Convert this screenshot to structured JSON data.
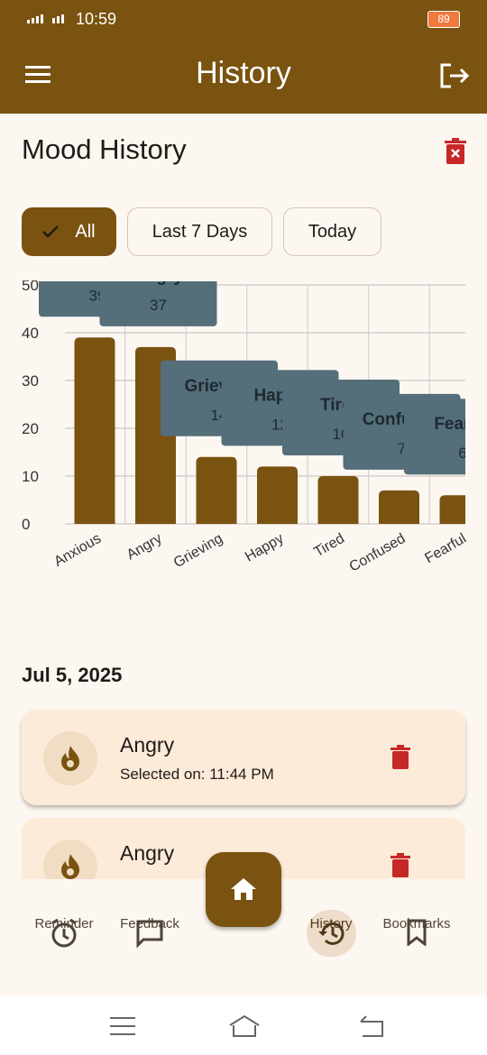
{
  "status_bar": {
    "time": "10:59",
    "battery": "89"
  },
  "app_bar": {
    "title": "History"
  },
  "header": {
    "title": "Mood History"
  },
  "filters": [
    "All",
    "Last 7 Days",
    "Today"
  ],
  "chart_data": {
    "type": "bar",
    "categories": [
      "Anxious",
      "Angry",
      "Grieving",
      "Happy",
      "Tired",
      "Confused",
      "Fearful"
    ],
    "values": [
      39,
      37,
      14,
      12,
      10,
      7,
      6
    ],
    "color": "#7a5311",
    "tooltip_color": "#546e7a",
    "ylim": [
      0,
      50
    ],
    "yticks": [
      0,
      10,
      20,
      30,
      40,
      50
    ],
    "grid": true
  },
  "history": {
    "date": "Jul 5, 2025",
    "entries": [
      {
        "mood": "Angry",
        "time": "Selected on: 11:44 PM"
      },
      {
        "mood": "Angry"
      }
    ]
  },
  "nav": [
    "Reminder",
    "Feedback",
    "History",
    "Bookmarks"
  ]
}
